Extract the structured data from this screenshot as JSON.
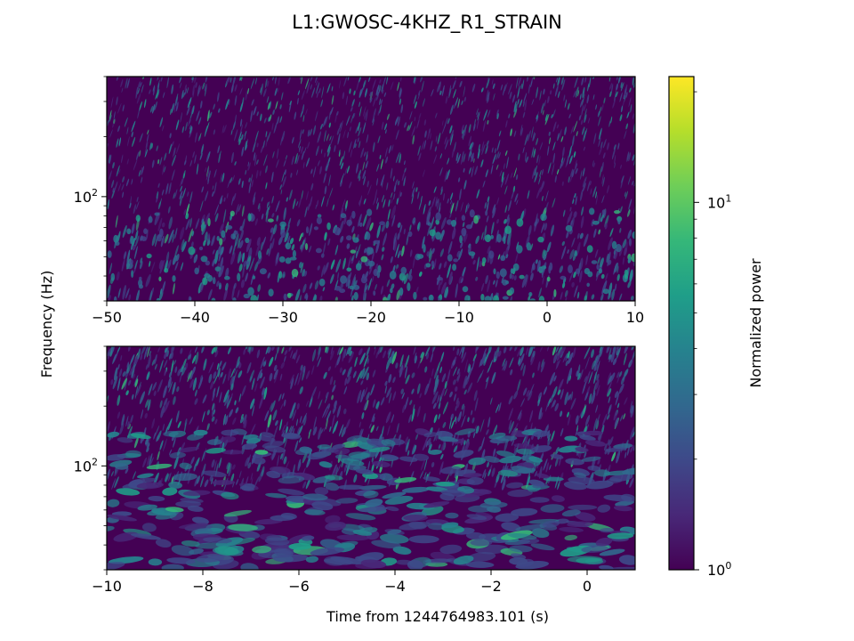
{
  "figure": {
    "title": "L1:GWOSC-4KHZ_R1_STRAIN",
    "shared_ylabel": "Frequency (Hz)"
  },
  "colormap": {
    "name": "viridis",
    "stops": [
      "#440154",
      "#482878",
      "#3e4989",
      "#31688e",
      "#26828e",
      "#1f9e89",
      "#35b779",
      "#6ece58",
      "#b5de2b",
      "#fde725"
    ]
  },
  "chart_data": [
    {
      "type": "heatmap",
      "panel": "top",
      "title": "",
      "xlabel": "",
      "ylabel": "Frequency (Hz)",
      "xlim": [
        -50,
        10
      ],
      "ylim": [
        30,
        400
      ],
      "yscale": "log",
      "xticks": [
        -50,
        -40,
        -30,
        -20,
        -10,
        0,
        10
      ],
      "xtick_labels": [
        "−50",
        "−40",
        "−30",
        "−20",
        "−10",
        "0",
        "10"
      ],
      "yticks_major": [
        100
      ],
      "ytick_major_labels": [
        {
          "base": "10",
          "exp": "2"
        }
      ],
      "yticks_minor": [
        30,
        40,
        50,
        60,
        70,
        80,
        90,
        200,
        300,
        400
      ],
      "grid": false
    },
    {
      "type": "heatmap",
      "panel": "bottom",
      "title": "",
      "xlabel": "Time from 1244764983.101 (s)",
      "ylabel": "Frequency (Hz)",
      "xlim": [
        -10,
        1
      ],
      "ylim": [
        30,
        400
      ],
      "yscale": "log",
      "xticks": [
        -10,
        -8,
        -6,
        -4,
        -2,
        0
      ],
      "xtick_labels": [
        "−10",
        "−8",
        "−6",
        "−4",
        "−2",
        "0"
      ],
      "yticks_major": [
        100
      ],
      "ytick_major_labels": [
        {
          "base": "10",
          "exp": "2"
        }
      ],
      "yticks_minor": [
        30,
        40,
        50,
        60,
        70,
        80,
        90,
        200,
        300,
        400
      ],
      "grid": false
    },
    {
      "type": "colorbar",
      "label": "Normalized power",
      "scale": "log",
      "range": [
        1,
        22
      ],
      "ticks_major": [
        1,
        10
      ],
      "tick_major_labels": [
        {
          "base": "10",
          "exp": "0"
        },
        {
          "base": "10",
          "exp": "1"
        }
      ],
      "ticks_minor": [
        2,
        3,
        4,
        5,
        6,
        7,
        8,
        9,
        20
      ]
    }
  ]
}
